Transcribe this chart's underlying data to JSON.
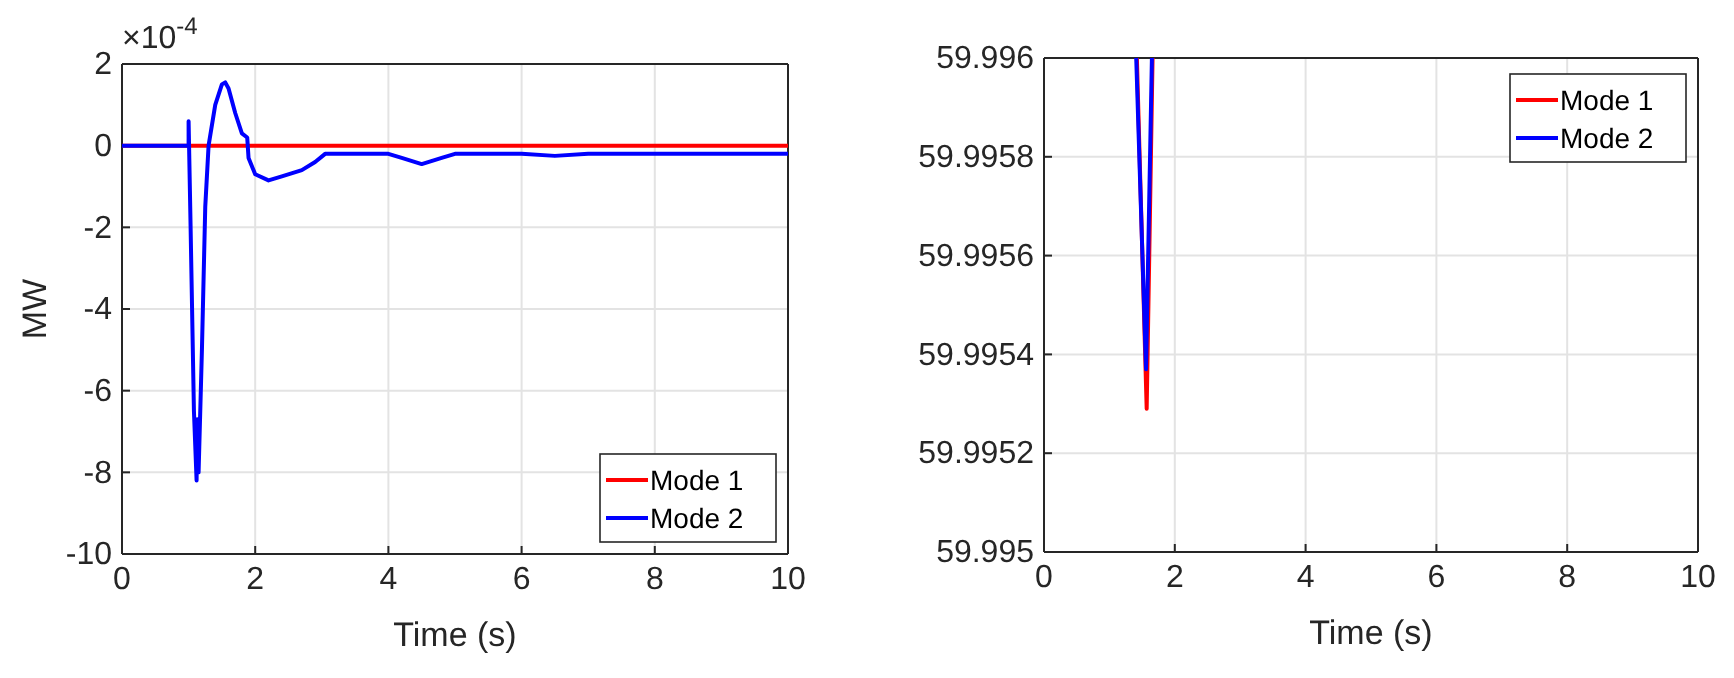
{
  "chart_data": [
    {
      "type": "line",
      "xlabel": "Time (s)",
      "ylabel": "MW",
      "annotations": [
        "×10$^{-4}$"
      ],
      "xlim": [
        0,
        10
      ],
      "ylim": [
        -10,
        2
      ],
      "xticks": [
        0,
        2,
        4,
        6,
        8,
        10
      ],
      "yticks": [
        -10,
        -8,
        -6,
        -4,
        -2,
        0,
        2
      ],
      "grid": true,
      "legend": "bottom right",
      "line_style": "solid",
      "series": [
        {
          "name": "Mode 1",
          "color": "#ff0000",
          "x": [
            0,
            10
          ],
          "values": [
            0,
            0
          ]
        },
        {
          "name": "Mode 2",
          "color": "#0000ff",
          "x": [
            0,
            1.0,
            1.0,
            1.03,
            1.08,
            1.12,
            1.13,
            1.15,
            1.2,
            1.25,
            1.3,
            1.4,
            1.5,
            1.55,
            1.6,
            1.7,
            1.8,
            1.88,
            1.9,
            2.0,
            2.2,
            2.4,
            2.7,
            2.9,
            3.05,
            3.5,
            4.0,
            4.2,
            4.5,
            4.8,
            5.0,
            6.0,
            6.5,
            7.0,
            10
          ],
          "values": [
            0,
            0,
            0.6,
            -2,
            -6.5,
            -8.2,
            -6.7,
            -8.0,
            -5,
            -1.5,
            0,
            1.0,
            1.5,
            1.55,
            1.4,
            0.8,
            0.3,
            0.2,
            -0.3,
            -0.7,
            -0.85,
            -0.75,
            -0.6,
            -0.4,
            -0.2,
            -0.2,
            -0.2,
            -0.3,
            -0.45,
            -0.3,
            -0.2,
            -0.2,
            -0.25,
            -0.2,
            -0.2
          ]
        }
      ]
    },
    {
      "type": "line",
      "xlabel": "Time (s)",
      "xlim": [
        0,
        10
      ],
      "ylim": [
        59.995,
        59.996
      ],
      "xticks": [
        0,
        2,
        4,
        6,
        8,
        10
      ],
      "yticks": [
        {
          "value": 59.995,
          "label": "59.995"
        },
        {
          "value": 59.9952,
          "label": "59.9952"
        },
        {
          "value": 59.9954,
          "label": "59.9954"
        },
        {
          "value": 59.9956,
          "label": "59.9956"
        },
        {
          "value": 59.9958,
          "label": "59.9958"
        },
        {
          "value": 59.996,
          "label": "59.996"
        }
      ],
      "grid": true,
      "legend": "top right",
      "line_style": "solid",
      "series": [
        {
          "name": "Mode 1",
          "color": "#ff0000",
          "x": [
            1.42,
            1.57,
            1.66
          ],
          "values": [
            59.996,
            59.99529,
            59.996
          ]
        },
        {
          "name": "Mode 2",
          "color": "#0000ff",
          "x": [
            1.41,
            1.56,
            1.65
          ],
          "values": [
            59.996,
            59.99537,
            59.996
          ]
        }
      ]
    }
  ]
}
